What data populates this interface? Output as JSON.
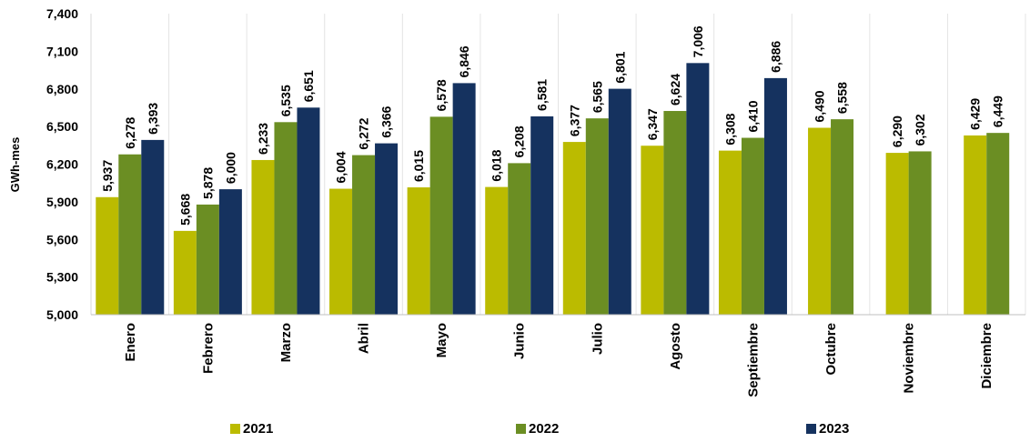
{
  "chart_data": {
    "type": "bar",
    "ylabel": "GWh-mes",
    "xlabel": "",
    "ylim": [
      5000,
      7400
    ],
    "yticks": [
      5000,
      5300,
      5600,
      5900,
      6200,
      6500,
      6800,
      7100,
      7400
    ],
    "ytick_labels": [
      "5,000",
      "5,300",
      "5,600",
      "5,900",
      "6,200",
      "6,500",
      "6,800",
      "7,100",
      "7,400"
    ],
    "grid": "vertical category separators",
    "legend_position": "bottom",
    "categories": [
      "Enero",
      "Febrero",
      "Marzo",
      "Abril",
      "Mayo",
      "Junio",
      "Julio",
      "Agosto",
      "Septiembre",
      "Octubre",
      "Noviembre",
      "Diciembre"
    ],
    "series": [
      {
        "name": "2021",
        "color": "#BBBB00",
        "values": [
          5937,
          5668,
          6233,
          6004,
          6015,
          6018,
          6377,
          6347,
          6308,
          6490,
          6290,
          6429
        ],
        "labels": [
          "5,937",
          "5,668",
          "6,233",
          "6,004",
          "6,015",
          "6,018",
          "6,377",
          "6,347",
          "6,308",
          "6,490",
          "6,290",
          "6,429"
        ]
      },
      {
        "name": "2022",
        "color": "#6B8E23",
        "values": [
          6278,
          5878,
          6535,
          6272,
          6578,
          6208,
          6565,
          6624,
          6410,
          6558,
          6302,
          6449
        ],
        "labels": [
          "6,278",
          "5,878",
          "6,535",
          "6,272",
          "6,578",
          "6,208",
          "6,565",
          "6,624",
          "6,410",
          "6,558",
          "6,302",
          "6,449"
        ]
      },
      {
        "name": "2023",
        "color": "#15325F",
        "values": [
          6393,
          6000,
          6651,
          6366,
          6846,
          6581,
          6801,
          7006,
          6886,
          null,
          null,
          null
        ],
        "labels": [
          "6,393",
          "6,000",
          "6,651",
          "6,366",
          "6,846",
          "6,581",
          "6,801",
          "7,006",
          "6,886",
          null,
          null,
          null
        ]
      }
    ]
  }
}
